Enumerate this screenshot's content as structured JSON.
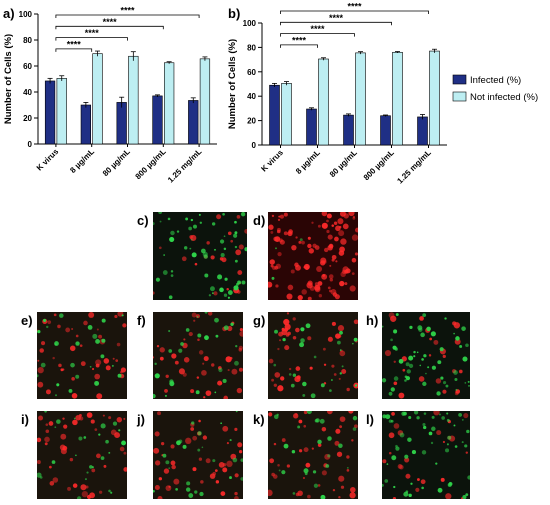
{
  "colors": {
    "infected": "#1f2f85",
    "not_infected": "#bdeef2",
    "axis": "#000000",
    "green_cell": "#2fd44a",
    "red_cell": "#ff2a2a"
  },
  "chart_data": [
    {
      "panel": "a)",
      "type": "bar",
      "categories": [
        "K virus",
        "8 µg/mL",
        "80 µg/mL",
        "800 µg/mL",
        "1.25 mg/mL"
      ],
      "series": [
        {
          "values": [
            48.5,
            30.0,
            32.0,
            37.0,
            33.5
          ],
          "errors": [
            2.0,
            2.0,
            4.0,
            0.8,
            2.0
          ]
        },
        {
          "values": [
            50.5,
            69.5,
            67.5,
            62.5,
            65.5
          ],
          "errors": [
            2.0,
            2.0,
            3.5,
            0.8,
            1.5
          ]
        }
      ],
      "ylabel": "Number of Cells  (%)",
      "ylim": [
        0,
        100
      ],
      "yticks": [
        0,
        20,
        40,
        60,
        80,
        100
      ],
      "significance": [
        {
          "from": 0,
          "to": 1,
          "label": "****"
        },
        {
          "from": 0,
          "to": 2,
          "label": "****"
        },
        {
          "from": 0,
          "to": 3,
          "label": "****"
        },
        {
          "from": 0,
          "to": 4,
          "label": "****"
        }
      ]
    },
    {
      "panel": "b)",
      "type": "bar",
      "categories": [
        "K virus",
        "8 µg/mL",
        "80 µg/mL",
        "800 µg/mL",
        "1.25 mg/mL"
      ],
      "series": [
        {
          "name": "Infected (%)",
          "values": [
            49.0,
            29.5,
            24.5,
            24.0,
            23.0
          ],
          "errors": [
            1.5,
            1.0,
            1.0,
            0.6,
            2.0
          ]
        },
        {
          "name": "Not infected (%)",
          "values": [
            50.5,
            70.5,
            75.5,
            76.0,
            77.0
          ],
          "errors": [
            1.5,
            1.0,
            1.0,
            0.6,
            1.5
          ]
        }
      ],
      "ylabel": "Number of Cells (%)",
      "ylim": [
        0,
        100
      ],
      "yticks": [
        0,
        20,
        40,
        60,
        80,
        100
      ],
      "legend": "right",
      "significance": [
        {
          "from": 0,
          "to": 1,
          "label": "****"
        },
        {
          "from": 0,
          "to": 2,
          "label": "****"
        },
        {
          "from": 0,
          "to": 3,
          "label": "****"
        },
        {
          "from": 0,
          "to": 4,
          "label": "****"
        }
      ]
    }
  ],
  "micrographs": [
    {
      "label": "c)",
      "stain": "mostly green"
    },
    {
      "label": "d)",
      "stain": "red"
    },
    {
      "label": "e)",
      "stain": "mixed"
    },
    {
      "label": "f)",
      "stain": "mixed"
    },
    {
      "label": "g)",
      "stain": "mixed"
    },
    {
      "label": "h)",
      "stain": "mostly green"
    },
    {
      "label": "i)",
      "stain": "mixed"
    },
    {
      "label": "j)",
      "stain": "mixed"
    },
    {
      "label": "k)",
      "stain": "mixed"
    },
    {
      "label": "l)",
      "stain": "mostly green"
    }
  ]
}
